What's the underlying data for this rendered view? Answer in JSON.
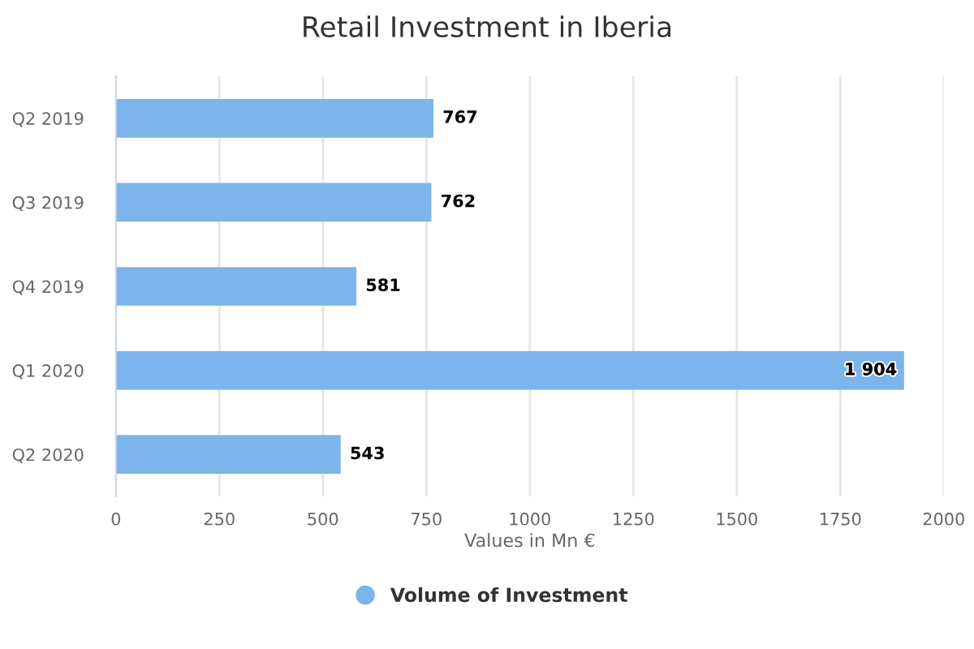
{
  "chart_data": {
    "type": "bar",
    "orientation": "horizontal",
    "title": "Retail Investment in Iberia",
    "xlabel": "Values in Mn €",
    "categories": [
      "Q2 2019",
      "Q3 2019",
      "Q4 2019",
      "Q1 2020",
      "Q2 2020"
    ],
    "series": [
      {
        "name": "Volume of Investment",
        "color": "#7cb4eb",
        "values": [
          767,
          762,
          581,
          1904,
          543
        ],
        "value_labels": [
          "767",
          "762",
          "581",
          "1 904",
          "543"
        ]
      }
    ],
    "xlim": [
      0,
      2000
    ],
    "xticks": [
      0,
      250,
      500,
      750,
      1000,
      1250,
      1500,
      1750,
      2000
    ],
    "grid": "x",
    "legend": "bottom",
    "marker": "circle"
  }
}
